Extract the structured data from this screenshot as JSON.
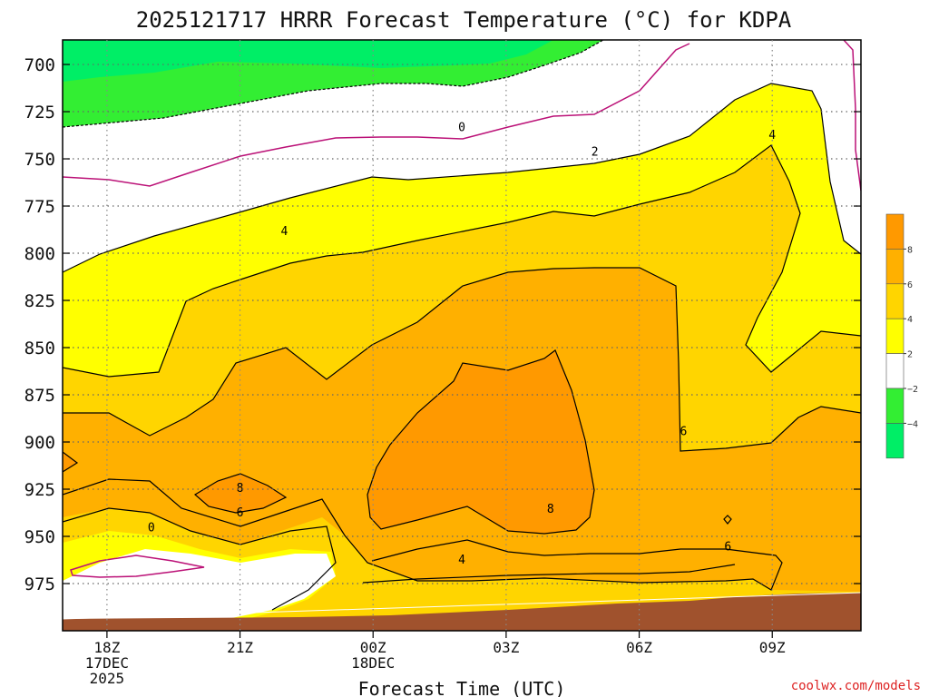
{
  "chart_data": {
    "type": "heatmap",
    "title": "2025121717 HRRR Forecast Temperature (°C) for KDPA",
    "xlabel": "Forecast Time (UTC)",
    "ylabel": "",
    "x_ticks": [
      {
        "hour": 0,
        "lines": [
          "18Z",
          "17DEC",
          "2025"
        ]
      },
      {
        "hour": 3,
        "lines": [
          "21Z"
        ]
      },
      {
        "hour": 6,
        "lines": [
          "00Z",
          "18DEC"
        ]
      },
      {
        "hour": 9,
        "lines": [
          "03Z"
        ]
      },
      {
        "hour": 12,
        "lines": [
          "06Z"
        ]
      },
      {
        "hour": 15,
        "lines": [
          "09Z"
        ]
      }
    ],
    "xlim": [
      -1,
      17
    ],
    "y_ticks": [
      700,
      725,
      750,
      775,
      800,
      825,
      850,
      875,
      900,
      925,
      950,
      975
    ],
    "ylim": [
      1000,
      687
    ],
    "grid": true,
    "contour_labels": [
      {
        "text": "0",
        "hour": 8,
        "p": 733
      },
      {
        "text": "2",
        "hour": 11,
        "p": 746
      },
      {
        "text": "4",
        "hour": 15,
        "p": 737
      },
      {
        "text": "4",
        "hour": 4,
        "p": 788
      },
      {
        "text": "6",
        "hour": 13,
        "p": 894
      },
      {
        "text": "8",
        "hour": 3,
        "p": 924
      },
      {
        "text": "6",
        "hour": 3,
        "p": 937
      },
      {
        "text": "0",
        "hour": 1,
        "p": 945
      },
      {
        "text": "8",
        "hour": 10,
        "p": 935
      },
      {
        "text": "6",
        "hour": 14,
        "p": 955
      },
      {
        "text": "4",
        "hour": 8,
        "p": 962
      }
    ],
    "colorbar": {
      "bins": [
        {
          "range": "8 to 10",
          "color": "#ff9900"
        },
        {
          "range": "6 to 8",
          "color": "#ffb000"
        },
        {
          "range": "4 to 6",
          "color": "#ffd500"
        },
        {
          "range": "2 to 4",
          "color": "#ffff00"
        },
        {
          "range": "-2 to 2",
          "color": "#ffffff"
        },
        {
          "range": "-4 to -2",
          "color": "#33ee33"
        },
        {
          "range": "below -4",
          "color": "#00ee66"
        }
      ],
      "labels": [
        "8",
        "6",
        "4",
        "2",
        "−2",
        "−4"
      ]
    },
    "colors": {
      "zero_contour": "#bb1177",
      "ground": "#a0522d",
      "frame": "#000000"
    }
  },
  "credit": "coolwx.com/models"
}
